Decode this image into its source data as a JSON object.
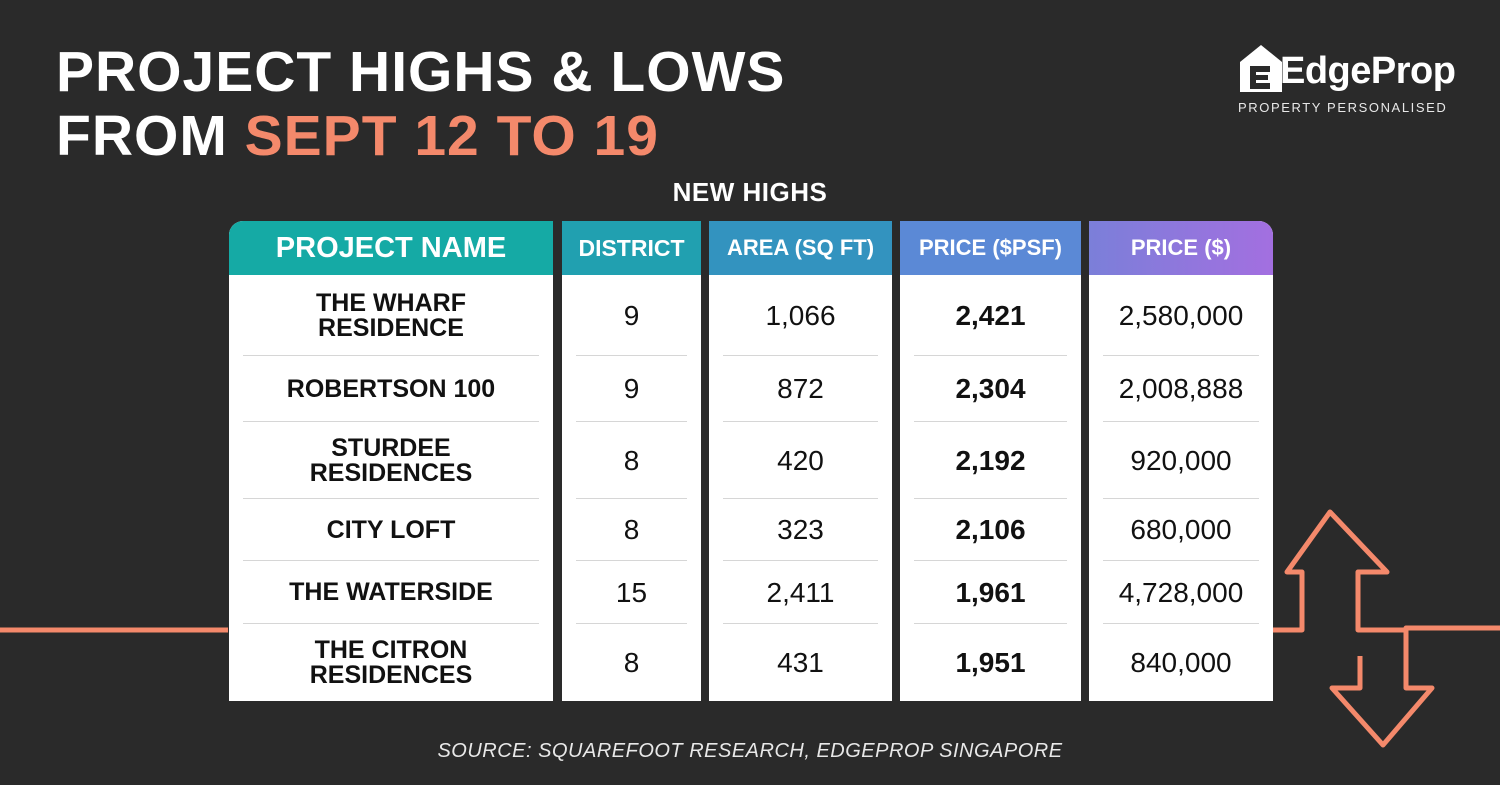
{
  "title": {
    "line1": "PROJECT HIGHS & LOWS",
    "line2_prefix": "FROM ",
    "line2_accent": "SEPT 12 TO 19"
  },
  "logo": {
    "text": "EdgeProp",
    "tagline": "PROPERTY PERSONALISED"
  },
  "section_title": "NEW HIGHS",
  "table": {
    "headers": {
      "project": "PROJECT NAME",
      "district": "DISTRICT",
      "area": "AREA (SQ FT)",
      "price_psf": "PRICE ($PSF)",
      "price": "PRICE ($)"
    },
    "rows": [
      {
        "project_l1": "THE WHARF",
        "project_l2": "RESIDENCE",
        "district": "9",
        "area": "1,066",
        "price_psf": "2,421",
        "price": "2,580,000"
      },
      {
        "project_l1": "ROBERTSON 100",
        "project_l2": "",
        "district": "9",
        "area": "872",
        "price_psf": "2,304",
        "price": "2,008,888"
      },
      {
        "project_l1": "STURDEE",
        "project_l2": "RESIDENCES",
        "district": "8",
        "area": "420",
        "price_psf": "2,192",
        "price": "920,000"
      },
      {
        "project_l1": "CITY LOFT",
        "project_l2": "",
        "district": "8",
        "area": "323",
        "price_psf": "2,106",
        "price": "680,000"
      },
      {
        "project_l1": "THE WATERSIDE",
        "project_l2": "",
        "district": "15",
        "area": "2,411",
        "price_psf": "1,961",
        "price": "4,728,000"
      },
      {
        "project_l1": "THE CITRON",
        "project_l2": "RESIDENCES",
        "district": "8",
        "area": "431",
        "price_psf": "1,951",
        "price": "840,000"
      }
    ]
  },
  "source": "SOURCE: SQUAREFOOT RESEARCH, EDGEPROP SINGAPORE",
  "colors": {
    "background": "#2a2a2a",
    "accent": "#f4896b",
    "header_teal": "#15aaa5",
    "header_blue": "#3c8fc4",
    "header_purple": "#a36fe0"
  }
}
